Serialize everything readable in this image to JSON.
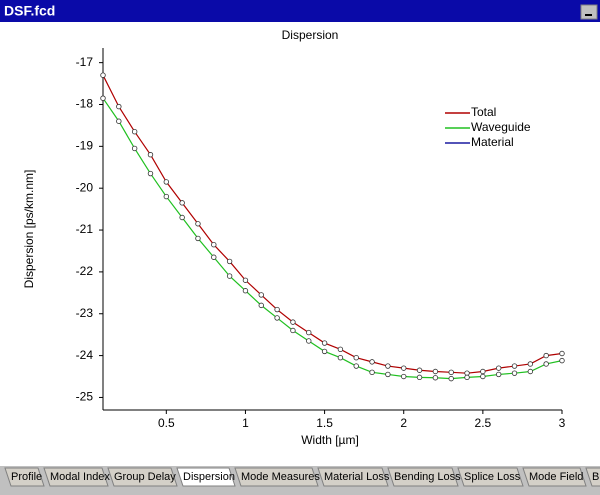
{
  "window": {
    "title": "DSF.fcd",
    "tabs": [
      "Profile",
      "Modal Index",
      "Group Delay",
      "Dispersion",
      "Mode Measures",
      "Material Loss",
      "Bending Loss",
      "Splice Loss",
      "Mode Field",
      "Bi"
    ]
  },
  "chart_data": {
    "type": "line",
    "title": "Dispersion",
    "xlabel": "Width [µm]",
    "ylabel": "Dispersion [ps/km.nm]",
    "x": [
      0.1,
      0.2,
      0.3,
      0.4,
      0.5,
      0.6,
      0.7,
      0.8,
      0.9,
      1.0,
      1.1,
      1.2,
      1.3,
      1.4,
      1.5,
      1.6,
      1.7,
      1.8,
      1.9,
      2.0,
      2.1,
      2.2,
      2.3,
      2.4,
      2.5,
      2.6,
      2.7,
      2.8,
      2.9,
      3.0
    ],
    "series": [
      {
        "name": "Total",
        "color": "#b00000",
        "values": [
          -17.3,
          -18.05,
          -18.65,
          -19.2,
          -19.85,
          -20.35,
          -20.85,
          -21.35,
          -21.75,
          -22.2,
          -22.55,
          -22.9,
          -23.2,
          -23.45,
          -23.7,
          -23.85,
          -24.05,
          -24.15,
          -24.25,
          -24.3,
          -24.35,
          -24.38,
          -24.4,
          -24.42,
          -24.38,
          -24.3,
          -24.25,
          -24.2,
          -24.0,
          -23.95
        ]
      },
      {
        "name": "Waveguide",
        "color": "#20c020",
        "values": [
          -17.85,
          -18.4,
          -19.05,
          -19.65,
          -20.2,
          -20.7,
          -21.2,
          -21.65,
          -22.1,
          -22.45,
          -22.8,
          -23.1,
          -23.4,
          -23.65,
          -23.9,
          -24.05,
          -24.25,
          -24.4,
          -24.45,
          -24.5,
          -24.52,
          -24.53,
          -24.55,
          -24.52,
          -24.5,
          -24.45,
          -24.42,
          -24.38,
          -24.2,
          -24.12
        ]
      },
      {
        "name": "Material",
        "color": "#1a1aa0",
        "values": [
          null,
          null,
          null,
          null,
          null,
          null,
          null,
          null,
          null,
          null,
          null,
          null,
          null,
          null,
          null,
          null,
          null,
          null,
          null,
          null,
          null,
          null,
          null,
          null,
          null,
          null,
          null,
          null,
          null,
          null
        ]
      }
    ],
    "markers": true,
    "legend": "upper right",
    "xlim": [
      0.1,
      3
    ],
    "ylim": [
      -25.3,
      -16.65
    ],
    "xticks": [
      0.5,
      1,
      1.5,
      2,
      2.5,
      3
    ],
    "yticks": [
      -17,
      -18,
      -19,
      -20,
      -21,
      -22,
      -23,
      -24,
      -25
    ]
  }
}
